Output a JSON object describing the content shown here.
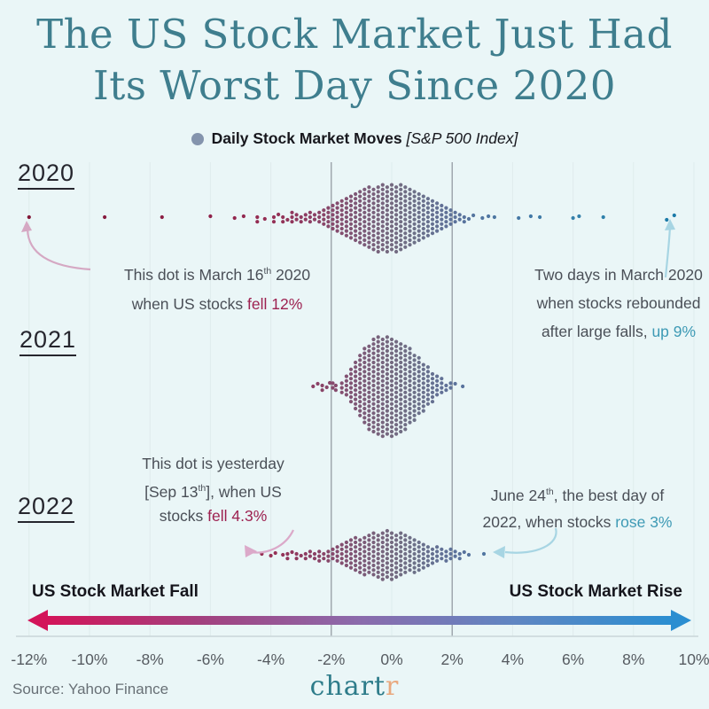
{
  "page": {
    "background": "#eaf6f7"
  },
  "title": {
    "line1": "The US Stock Market Just Had",
    "line2": "Its Worst Day Since 2020",
    "color": "#3f7e8e"
  },
  "legend": {
    "dot_color": "#8494ad",
    "segments": [
      {
        "t": "Daily Stock Market Moves ",
        "s": "bold"
      },
      {
        "t": "[S&P 500 Index]",
        "s": "italic"
      }
    ]
  },
  "annotations": {
    "march16": {
      "arrow_color": "#d5a8c3",
      "lines": [
        [
          {
            "t": "This dot is March 16"
          },
          {
            "t": "th",
            "s": "sup"
          },
          {
            "t": " 2020"
          }
        ],
        [
          {
            "t": "when US stocks "
          },
          {
            "t": "fell 12%",
            "s": "red"
          }
        ]
      ]
    },
    "rebound": {
      "arrow_color": "#a7d5e3",
      "lines": [
        [
          {
            "t": "Two days in March 2020"
          }
        ],
        [
          {
            "t": "when stocks rebounded"
          }
        ],
        [
          {
            "t": "after large falls, "
          },
          {
            "t": "up 9%",
            "s": "teal"
          }
        ]
      ]
    },
    "sep13": {
      "arrow_color": "#dba9c9",
      "lines": [
        [
          {
            "t": "This dot is yesterday"
          }
        ],
        [
          {
            "t": "[Sep 13"
          },
          {
            "t": "th",
            "s": "sup"
          },
          {
            "t": "], when US"
          }
        ],
        [
          {
            "t": "stocks "
          },
          {
            "t": "fell 4.3%",
            "s": "red"
          }
        ]
      ]
    },
    "june24": {
      "arrow_color": "#a7d5e3",
      "lines": [
        [
          {
            "t": "June 24"
          },
          {
            "t": "th",
            "s": "sup"
          },
          {
            "t": ", the best day of"
          }
        ],
        [
          {
            "t": "2022, when stocks "
          },
          {
            "t": "rose 3%",
            "s": "teal"
          }
        ]
      ]
    }
  },
  "footer": {
    "fall_label": "US Stock Market Fall",
    "rise_label": "US Stock Market Rise",
    "gradient": [
      "#d31459",
      "#a2417f",
      "#8b6bac",
      "#5f86c2",
      "#2b8ed1"
    ],
    "source": "Source: Yahoo Finance",
    "logo": {
      "part1": "chart",
      "part2": "r",
      "color1": "#2e7c8a",
      "color2": "#e9a87e"
    }
  },
  "chart_data": {
    "type": "beeswarm",
    "title": "The US Stock Market Just Had Its Worst Day Since 2020",
    "legend": "Daily Stock Market Moves [S&P 500 Index]",
    "x_unit": "daily % change",
    "x_range": [
      -12,
      10
    ],
    "grid": "vertical reference lines at -2% and +2%",
    "highlight_gridlines": [
      -2,
      2
    ],
    "x_ticks": [
      {
        "v": -12,
        "label": "-12%"
      },
      {
        "v": -10,
        "label": "-10%"
      },
      {
        "v": -8,
        "label": "-8%"
      },
      {
        "v": -6,
        "label": "-6%"
      },
      {
        "v": -4,
        "label": "-4%"
      },
      {
        "v": -2,
        "label": "-2%"
      },
      {
        "v": 0,
        "label": "0%"
      },
      {
        "v": 2,
        "label": "2%"
      },
      {
        "v": 4,
        "label": "4%"
      },
      {
        "v": 6,
        "label": "6%"
      },
      {
        "v": 8,
        "label": "8%"
      },
      {
        "v": 10,
        "label": "10%"
      }
    ],
    "highlights": [
      {
        "row": "2020",
        "date": "March 16 2020",
        "value": -12,
        "note": "US stocks fell 12%"
      },
      {
        "row": "2020",
        "date": "March 2020",
        "value": 9,
        "note": "two days rebounded up 9% after large falls"
      },
      {
        "row": "2022",
        "date": "Sep 13 2022 (yesterday)",
        "value": -4.3,
        "note": "stocks fell 4.3%"
      },
      {
        "row": "2022",
        "date": "June 24 2022",
        "value": 3,
        "note": "best day of 2022, stocks rose 3%"
      }
    ],
    "color_scale": {
      "stops": [
        [
          -12,
          "#821737"
        ],
        [
          -6,
          "#8f2049"
        ],
        [
          -4,
          "#963055"
        ],
        [
          -3,
          "#8f3a60"
        ],
        [
          -2,
          "#87496c"
        ],
        [
          -1,
          "#7d5a78"
        ],
        [
          0,
          "#746a80"
        ],
        [
          0.8,
          "#6d7189"
        ],
        [
          1.6,
          "#637195"
        ],
        [
          2.2,
          "#5a729c"
        ],
        [
          3,
          "#5276a1"
        ],
        [
          4.5,
          "#4379a6"
        ],
        [
          6,
          "#3580aa"
        ],
        [
          7.5,
          "#2a80ab"
        ],
        [
          9,
          "#1c7aa8"
        ],
        [
          10,
          "#187aa9"
        ]
      ]
    },
    "rows": [
      {
        "label": "2020",
        "bins": [
          [
            -12.0,
            1
          ],
          [
            -9.5,
            1
          ],
          [
            -7.6,
            1
          ],
          [
            -6.0,
            1,
            -1
          ],
          [
            -5.2,
            1,
            1
          ],
          [
            -4.9,
            1,
            -1
          ],
          [
            -4.45,
            2
          ],
          [
            -4.2,
            1,
            2
          ],
          [
            -3.9,
            2
          ],
          [
            -3.75,
            1,
            -3
          ],
          [
            -3.6,
            2
          ],
          [
            -3.45,
            1,
            3
          ],
          [
            -3.3,
            3
          ],
          [
            -3.15,
            2
          ],
          [
            -3.0,
            2
          ],
          [
            -2.85,
            2
          ],
          [
            -2.7,
            3
          ],
          [
            -2.55,
            2
          ],
          [
            -2.4,
            3
          ],
          [
            -2.25,
            4
          ],
          [
            -2.1,
            5
          ],
          [
            -1.95,
            6
          ],
          [
            -1.8,
            7
          ],
          [
            -1.65,
            8
          ],
          [
            -1.5,
            9
          ],
          [
            -1.35,
            10
          ],
          [
            -1.2,
            11
          ],
          [
            -1.05,
            12
          ],
          [
            -0.9,
            13
          ],
          [
            -0.75,
            14
          ],
          [
            -0.6,
            14
          ],
          [
            -0.45,
            15
          ],
          [
            -0.3,
            15
          ],
          [
            -0.15,
            15
          ],
          [
            0.0,
            15
          ],
          [
            0.15,
            15
          ],
          [
            0.3,
            15
          ],
          [
            0.45,
            14
          ],
          [
            0.6,
            13
          ],
          [
            0.75,
            12
          ],
          [
            0.9,
            11
          ],
          [
            1.05,
            10
          ],
          [
            1.2,
            9
          ],
          [
            1.35,
            8
          ],
          [
            1.5,
            7
          ],
          [
            1.65,
            6
          ],
          [
            1.8,
            5
          ],
          [
            1.95,
            4
          ],
          [
            2.1,
            3
          ],
          [
            2.25,
            2
          ],
          [
            2.4,
            2
          ],
          [
            2.55,
            1,
            2
          ],
          [
            2.7,
            1,
            -2
          ],
          [
            3.0,
            1,
            1
          ],
          [
            3.2,
            1,
            -1
          ],
          [
            3.4,
            1,
            0
          ],
          [
            4.2,
            1,
            1
          ],
          [
            4.6,
            1,
            -1
          ],
          [
            4.9,
            1,
            0
          ],
          [
            6.0,
            1,
            1
          ],
          [
            6.2,
            1,
            -1
          ],
          [
            7.0,
            1,
            0
          ],
          [
            9.1,
            1,
            3
          ],
          [
            9.35,
            1,
            -2
          ]
        ]
      },
      {
        "label": "2021",
        "bins": [
          [
            -2.6,
            1,
            1
          ],
          [
            -2.45,
            1,
            -2
          ],
          [
            -2.3,
            2
          ],
          [
            -2.15,
            1,
            2
          ],
          [
            -2.05,
            1,
            -3
          ],
          [
            -1.95,
            2
          ],
          [
            -1.85,
            2
          ],
          [
            -1.65,
            3
          ],
          [
            -1.5,
            5
          ],
          [
            -1.35,
            8
          ],
          [
            -1.2,
            11
          ],
          [
            -1.05,
            14
          ],
          [
            -0.9,
            17
          ],
          [
            -0.75,
            19
          ],
          [
            -0.6,
            21
          ],
          [
            -0.45,
            22
          ],
          [
            -0.3,
            22
          ],
          [
            -0.15,
            22
          ],
          [
            0.0,
            22
          ],
          [
            0.15,
            21
          ],
          [
            0.3,
            20
          ],
          [
            0.45,
            19
          ],
          [
            0.6,
            17
          ],
          [
            0.75,
            15
          ],
          [
            0.9,
            13
          ],
          [
            1.05,
            11
          ],
          [
            1.2,
            9
          ],
          [
            1.35,
            7
          ],
          [
            1.5,
            5
          ],
          [
            1.65,
            4
          ],
          [
            1.8,
            2
          ],
          [
            1.95,
            2
          ],
          [
            2.1,
            1,
            -2
          ],
          [
            2.35,
            1,
            1
          ]
        ]
      },
      {
        "label": "2022",
        "bins": [
          [
            -4.3,
            1
          ],
          [
            -4.0,
            1,
            2
          ],
          [
            -3.85,
            1,
            -1
          ],
          [
            -3.6,
            1,
            1
          ],
          [
            -3.45,
            2
          ],
          [
            -3.3,
            1,
            -2
          ],
          [
            -3.15,
            2
          ],
          [
            -3.0,
            1,
            2
          ],
          [
            -2.85,
            2
          ],
          [
            -2.7,
            2
          ],
          [
            -2.55,
            2
          ],
          [
            -2.4,
            3
          ],
          [
            -2.25,
            2
          ],
          [
            -2.1,
            3
          ],
          [
            -1.95,
            3
          ],
          [
            -1.8,
            4
          ],
          [
            -1.65,
            5
          ],
          [
            -1.5,
            6
          ],
          [
            -1.35,
            7
          ],
          [
            -1.2,
            8
          ],
          [
            -1.05,
            8
          ],
          [
            -0.9,
            9
          ],
          [
            -0.75,
            9
          ],
          [
            -0.6,
            10
          ],
          [
            -0.45,
            10
          ],
          [
            -0.3,
            11
          ],
          [
            -0.15,
            11
          ],
          [
            0.0,
            11
          ],
          [
            0.15,
            10
          ],
          [
            0.3,
            10
          ],
          [
            0.45,
            9
          ],
          [
            0.6,
            8
          ],
          [
            0.75,
            8
          ],
          [
            0.9,
            7
          ],
          [
            1.05,
            6
          ],
          [
            1.2,
            5
          ],
          [
            1.35,
            4
          ],
          [
            1.5,
            4
          ],
          [
            1.65,
            3
          ],
          [
            1.8,
            3
          ],
          [
            1.95,
            3
          ],
          [
            2.1,
            2
          ],
          [
            2.25,
            2
          ],
          [
            2.4,
            1,
            -2
          ],
          [
            2.55,
            1,
            1
          ],
          [
            3.05,
            1,
            0
          ]
        ]
      }
    ]
  }
}
